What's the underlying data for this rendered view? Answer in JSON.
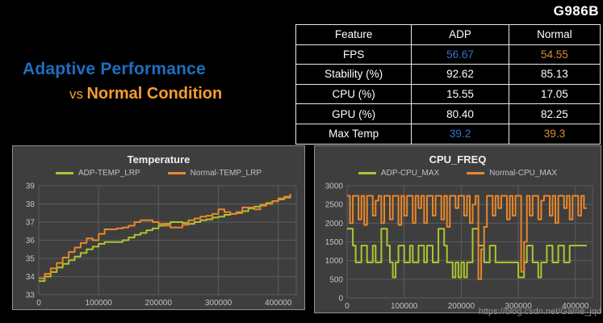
{
  "header": {
    "device": "G986B",
    "title_line1": "Adaptive Performance",
    "vs": "vs",
    "title_line2": "Normal Condition"
  },
  "table": {
    "headers": [
      "Feature",
      "ADP",
      "Normal"
    ],
    "rows": [
      {
        "feature": "FPS",
        "adp": "56.67",
        "normal": "54.55"
      },
      {
        "feature": "Stability (%)",
        "adp": "92.62",
        "normal": "85.13"
      },
      {
        "feature": "CPU (%)",
        "adp": "15.55",
        "normal": "17.05"
      },
      {
        "feature": "GPU (%)",
        "adp": "80.40",
        "normal": "82.25"
      },
      {
        "feature": "Max Temp",
        "adp": "39.2",
        "normal": "39.3"
      }
    ]
  },
  "watermark": "https://blog.csdn.net/Game_jqd",
  "colors": {
    "accent_blue": "#3574c8",
    "accent_orange": "#dd8e2a",
    "title_blue": "#1d6fc2",
    "title_orange": "#f39d2f",
    "panel_bg": "#3e3e3e",
    "panel_border": "#8f8f8f",
    "grid": "#5c5c5c",
    "text_light": "#efefef",
    "text_gray": "#c2c2c2",
    "watermark_gray": "#8f8f8f"
  },
  "chart_data": [
    {
      "type": "line",
      "title": "Temperature",
      "xlabel": "",
      "ylabel": "",
      "x_ticks": [
        0,
        100000,
        200000,
        300000,
        400000
      ],
      "xlim": [
        0,
        430000
      ],
      "y_ticks": [
        39,
        38,
        37,
        36,
        35,
        34,
        33
      ],
      "ylim": [
        33,
        39
      ],
      "x_step": 10000,
      "grid": true,
      "legend_position": "top",
      "line_style": "step",
      "series": [
        {
          "name": "ADP-TEMP_LRP",
          "color": "#aec42f",
          "values": [
            33.75,
            34.0,
            34.25,
            34.5,
            34.7,
            34.9,
            35.1,
            35.3,
            35.5,
            35.65,
            35.8,
            35.9,
            35.9,
            35.9,
            36.0,
            36.15,
            36.3,
            36.4,
            36.55,
            36.65,
            36.8,
            36.9,
            37.0,
            37.0,
            36.95,
            36.9,
            37.0,
            37.1,
            37.15,
            37.25,
            37.3,
            37.4,
            37.45,
            37.5,
            37.6,
            37.75,
            37.85,
            37.95,
            38.05,
            38.15,
            38.25,
            38.35,
            38.5
          ]
        },
        {
          "name": "Normal-TEMP_LRP",
          "color": "#e8872b",
          "values": [
            33.9,
            34.15,
            34.45,
            34.75,
            35.05,
            35.35,
            35.6,
            35.85,
            36.1,
            36.0,
            36.35,
            36.6,
            36.6,
            36.65,
            36.7,
            36.8,
            37.0,
            37.1,
            37.1,
            37.0,
            36.9,
            36.8,
            36.7,
            36.7,
            36.85,
            37.1,
            37.2,
            37.3,
            37.35,
            37.45,
            37.7,
            37.55,
            37.45,
            37.55,
            37.8,
            37.8,
            37.7,
            37.9,
            38.0,
            38.15,
            38.3,
            38.4,
            38.55
          ]
        }
      ]
    },
    {
      "type": "line",
      "title": "CPU_FREQ",
      "xlabel": "",
      "ylabel": "",
      "x_ticks": [
        0,
        100000,
        200000,
        300000,
        400000
      ],
      "xlim": [
        0,
        430000
      ],
      "y_ticks": [
        3000,
        2500,
        2000,
        1500,
        1000,
        500,
        0
      ],
      "ylim": [
        0,
        3000
      ],
      "x_step": 5000,
      "grid": true,
      "legend_position": "top",
      "line_style": "step",
      "series": [
        {
          "name": "ADP-CPU_MAX",
          "color": "#aec42f",
          "values": [
            1850,
            1850,
            1400,
            950,
            950,
            1400,
            1400,
            950,
            950,
            1400,
            950,
            950,
            1850,
            1850,
            1400,
            950,
            550,
            950,
            1400,
            1400,
            950,
            950,
            1400,
            950,
            950,
            1400,
            1400,
            950,
            1400,
            1400,
            950,
            950,
            1850,
            1850,
            1400,
            950,
            950,
            550,
            950,
            550,
            950,
            550,
            950,
            950,
            1850,
            1850,
            1400,
            1400,
            950,
            950,
            1400,
            1400,
            950,
            950,
            950,
            950,
            950,
            950,
            950,
            950,
            550,
            550,
            950,
            1400,
            1400,
            950,
            950,
            550,
            950,
            950,
            1400,
            1400,
            950,
            950,
            1400,
            1400,
            950,
            950,
            1400,
            1400,
            1400,
            1400,
            1400,
            1400,
            1400
          ]
        },
        {
          "name": "Normal-CPU_MAX",
          "color": "#e8872b",
          "values": [
            2730,
            2000,
            2730,
            2730,
            2100,
            2730,
            1950,
            2730,
            2730,
            2200,
            2600,
            2730,
            2000,
            2730,
            2730,
            2100,
            2730,
            2730,
            1950,
            2730,
            2200,
            2730,
            2730,
            2000,
            2730,
            2400,
            2730,
            2000,
            2730,
            2730,
            2200,
            2730,
            2730,
            2100,
            2730,
            1900,
            2730,
            2730,
            2400,
            2730,
            2730,
            2200,
            2730,
            2000,
            2500,
            2730,
            500,
            1300,
            1900,
            2730,
            2730,
            2200,
            2730,
            2400,
            2730,
            2730,
            2100,
            2730,
            2200,
            2730,
            2730,
            700,
            1500,
            2730,
            2200,
            2730,
            2730,
            2100,
            2600,
            2730,
            2730,
            2200,
            2730,
            2000,
            2730,
            2730,
            2400,
            2730,
            2100,
            2730,
            2730,
            2200,
            2730,
            2400,
            2400
          ]
        }
      ]
    }
  ]
}
